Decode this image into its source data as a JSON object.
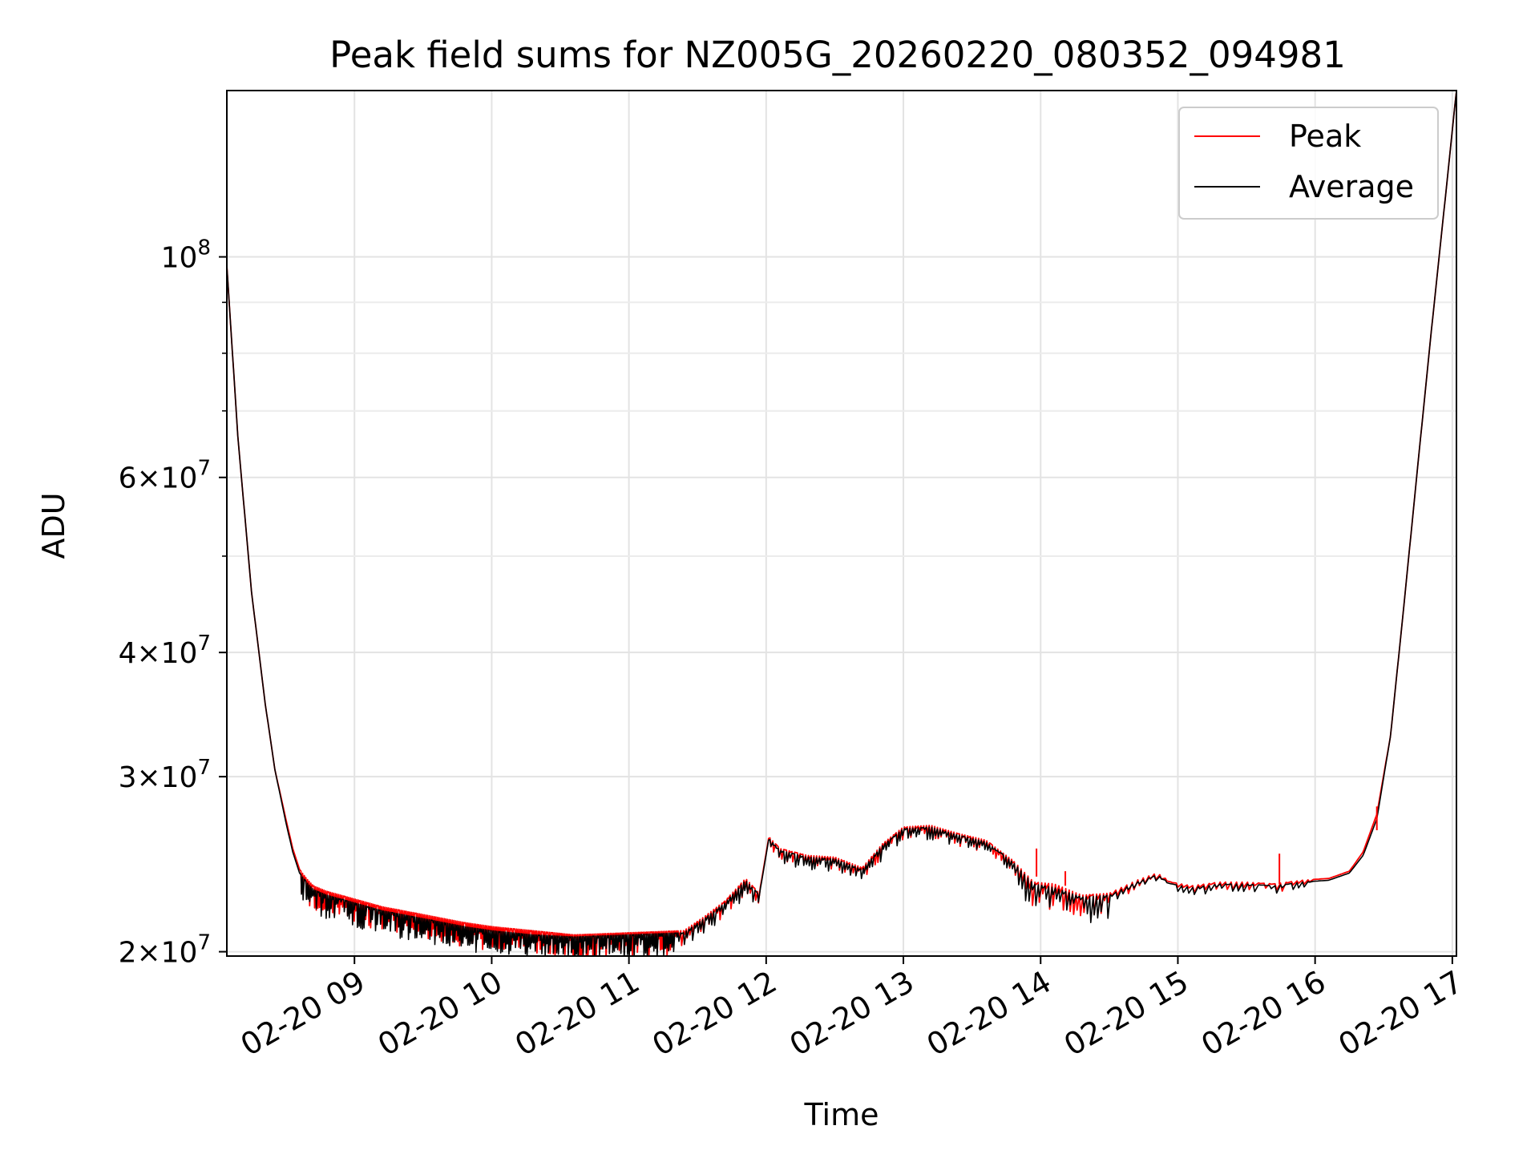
{
  "chart_data": {
    "type": "line",
    "title": "Peak field sums for NZ005G_20260220_080352_094981",
    "xlabel": "Time",
    "ylabel": "ADU",
    "yscale": "log",
    "xlim": [
      8.07,
      17.03
    ],
    "ylim": [
      19800000,
      147000000
    ],
    "grid": true,
    "legend_position": "top-right",
    "x_unit": "hour of day on 02-20",
    "x_ticks": [
      {
        "value": 9,
        "label": "02-20 09"
      },
      {
        "value": 10,
        "label": "02-20 10"
      },
      {
        "value": 11,
        "label": "02-20 11"
      },
      {
        "value": 12,
        "label": "02-20 12"
      },
      {
        "value": 13,
        "label": "02-20 13"
      },
      {
        "value": 14,
        "label": "02-20 14"
      },
      {
        "value": 15,
        "label": "02-20 15"
      },
      {
        "value": 16,
        "label": "02-20 16"
      },
      {
        "value": 17,
        "label": "02-20 17"
      }
    ],
    "y_ticks": [
      {
        "value": 20000000,
        "mantissa": "2",
        "exponent": "7"
      },
      {
        "value": 30000000,
        "mantissa": "3",
        "exponent": "7"
      },
      {
        "value": 40000000,
        "mantissa": "4",
        "exponent": "7"
      },
      {
        "value": 60000000,
        "mantissa": "6",
        "exponent": "7"
      },
      {
        "value": 100000000,
        "mantissa": "",
        "exponent": "8"
      }
    ],
    "y_minor_ticks": [
      50000000,
      70000000,
      80000000,
      90000000
    ],
    "times_symbol": "×",
    "base": "10",
    "series": [
      {
        "name": "Peak",
        "color": "#ff0000",
        "x": [
          8.07,
          8.15,
          8.25,
          8.35,
          8.42,
          8.5,
          8.55,
          8.6,
          8.65,
          8.7,
          8.8,
          8.9,
          9.0,
          9.2,
          9.5,
          9.8,
          10.0,
          10.3,
          10.6,
          11.0,
          11.4,
          11.55,
          11.7,
          11.85,
          11.95,
          12.02,
          12.1,
          12.3,
          12.5,
          12.7,
          12.85,
          13.0,
          13.2,
          13.4,
          13.6,
          13.8,
          13.95,
          14.1,
          14.3,
          14.5,
          14.7,
          14.85,
          14.95,
          15.1,
          15.3,
          15.5,
          15.7,
          15.9,
          16.1,
          16.25,
          16.35,
          16.45,
          16.55,
          16.65,
          16.75,
          16.85,
          16.95,
          17.03
        ],
        "y": [
          98000000,
          66000000,
          46000000,
          35500000,
          30500000,
          27200000,
          25400000,
          24200000,
          23700000,
          23300000,
          23000000,
          22800000,
          22600000,
          22200000,
          21800000,
          21400000,
          21200000,
          21000000,
          20800000,
          20900000,
          21000000,
          21700000,
          22500000,
          23700000,
          22900000,
          26100000,
          25400000,
          25000000,
          24900000,
          24300000,
          25700000,
          26700000,
          26800000,
          26300000,
          25900000,
          24700000,
          23500000,
          23400000,
          22800000,
          22900000,
          23600000,
          24000000,
          23500000,
          23300000,
          23500000,
          23500000,
          23400000,
          23600000,
          23700000,
          24100000,
          25200000,
          27500000,
          33000000,
          45000000,
          62000000,
          85000000,
          115000000,
          147000000
        ]
      },
      {
        "name": "Average",
        "color": "#000000",
        "x": [
          8.07,
          8.15,
          8.25,
          8.35,
          8.42,
          8.5,
          8.55,
          8.6,
          8.65,
          8.7,
          8.8,
          8.9,
          9.0,
          9.2,
          9.5,
          9.8,
          10.0,
          10.3,
          10.6,
          11.0,
          11.4,
          11.55,
          11.7,
          11.85,
          11.95,
          12.02,
          12.1,
          12.3,
          12.5,
          12.7,
          12.85,
          13.0,
          13.2,
          13.4,
          13.6,
          13.8,
          13.95,
          14.1,
          14.3,
          14.5,
          14.7,
          14.85,
          14.95,
          15.1,
          15.3,
          15.5,
          15.7,
          15.9,
          16.1,
          16.25,
          16.35,
          16.45,
          16.55,
          16.65,
          16.75,
          16.85,
          16.95,
          17.03
        ],
        "y": [
          98000000,
          66000000,
          46000000,
          35500000,
          30500000,
          27000000,
          25200000,
          24000000,
          23500000,
          23100000,
          22800000,
          22600000,
          22400000,
          22000000,
          21600000,
          21200000,
          21000000,
          20800000,
          20700000,
          20800000,
          20900000,
          21600000,
          22400000,
          23600000,
          22800000,
          26000000,
          25300000,
          24900000,
          24800000,
          24200000,
          25600000,
          26600000,
          26700000,
          26200000,
          25800000,
          24600000,
          23400000,
          23200000,
          22700000,
          22800000,
          23500000,
          23900000,
          23400000,
          23200000,
          23400000,
          23400000,
          23300000,
          23500000,
          23600000,
          24000000,
          25000000,
          27200000,
          33000000,
          45000000,
          62000000,
          85000000,
          115000000,
          147000000
        ]
      }
    ],
    "spikes": [
      {
        "series": "Peak",
        "x": 13.97,
        "y_from": 23800000,
        "y_to": 25400000
      },
      {
        "series": "Peak",
        "x": 14.18,
        "y_from": 23300000,
        "y_to": 24100000
      },
      {
        "series": "Peak",
        "x": 15.74,
        "y_from": 23400000,
        "y_to": 25100000
      },
      {
        "series": "Peak",
        "x": 16.45,
        "y_from": 26500000,
        "y_to": 28000000
      }
    ],
    "noise_bands": [
      {
        "x_from": 8.6,
        "x_to": 11.35,
        "depth_fraction": 0.055,
        "step": 0.012
      },
      {
        "x_from": 11.35,
        "x_to": 11.95,
        "depth_fraction": 0.035,
        "step": 0.02
      },
      {
        "x_from": 12.02,
        "x_to": 13.8,
        "depth_fraction": 0.03,
        "step": 0.02
      },
      {
        "x_from": 13.8,
        "x_to": 14.5,
        "depth_fraction": 0.06,
        "step": 0.025
      },
      {
        "x_from": 14.5,
        "x_to": 15.95,
        "depth_fraction": 0.02,
        "step": 0.04
      }
    ]
  }
}
